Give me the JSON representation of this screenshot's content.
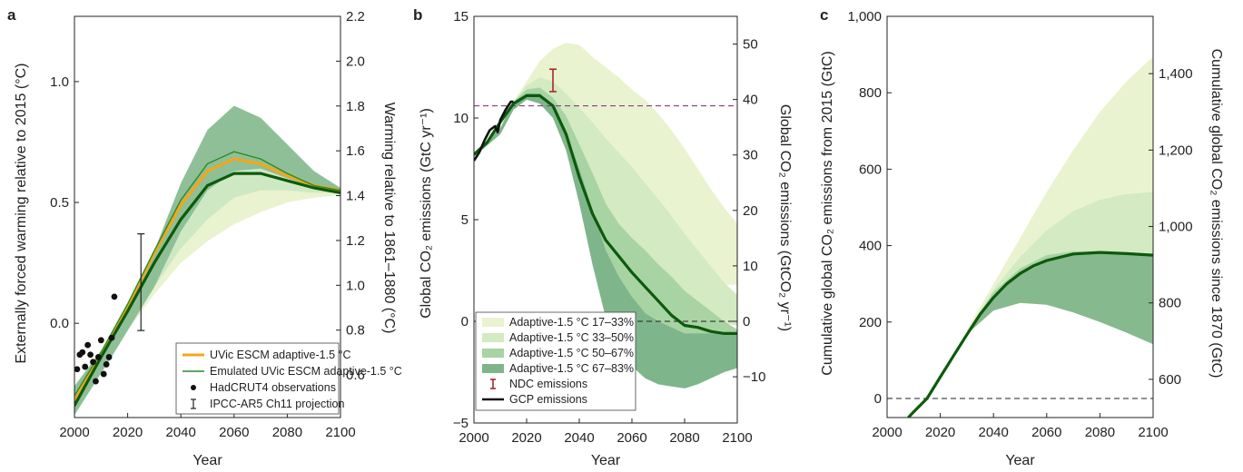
{
  "chart_data": [
    {
      "panel": "a",
      "type": "line",
      "xlabel": "Year",
      "ylabel": "Externally forced warming relative to 2015 (°C)",
      "ylabel_right": "Warming relative to 1861–1880 (°C)",
      "xlim": [
        2000,
        2100
      ],
      "ylim": [
        -0.39,
        1.27
      ],
      "ylim_right": [
        0.41,
        2.2
      ],
      "xticks": [
        2000,
        2020,
        2040,
        2060,
        2080,
        2100
      ],
      "xtick_labels": [
        "2000",
        "2020",
        "2040",
        "2060",
        "2080",
        "2100"
      ],
      "yticks": [
        0,
        0.5,
        1.0
      ],
      "ytick_labels": [
        "0.0",
        "0.5",
        "1.0"
      ],
      "yticks_right": [
        0.6,
        0.8,
        1.0,
        1.2,
        1.4,
        1.6,
        1.8,
        2.0,
        2.2
      ],
      "ytick_labels_right": [
        "0.6",
        "0.8",
        "1.0",
        "1.2",
        "1.4",
        "1.6",
        "1.8",
        "2.0",
        "2.2"
      ],
      "bands": [
        {
          "color": "#e9f3cf",
          "x": [
            2000,
            2015,
            2020,
            2030,
            2040,
            2050,
            2060,
            2070,
            2080,
            2090,
            2100
          ],
          "lower": [
            -0.38,
            -0.12,
            -0.03,
            0.12,
            0.25,
            0.34,
            0.41,
            0.46,
            0.5,
            0.52,
            0.53
          ],
          "upper": [
            -0.26,
            -0.04,
            0.06,
            0.26,
            0.43,
            0.57,
            0.64,
            0.65,
            0.61,
            0.57,
            0.55
          ]
        },
        {
          "color": "#cfe8c4",
          "x": [
            2000,
            2015,
            2020,
            2030,
            2040,
            2050,
            2060,
            2070,
            2080,
            2090,
            2100
          ],
          "lower": [
            -0.38,
            -0.12,
            -0.03,
            0.15,
            0.31,
            0.43,
            0.52,
            0.55,
            0.55,
            0.54,
            0.54
          ],
          "upper": [
            -0.26,
            -0.04,
            0.06,
            0.28,
            0.47,
            0.64,
            0.72,
            0.72,
            0.66,
            0.59,
            0.55
          ]
        },
        {
          "color": "#8fbf96",
          "x": [
            2000,
            2015,
            2020,
            2030,
            2040,
            2050,
            2060,
            2070,
            2080,
            2090,
            2100
          ],
          "lower": [
            -0.38,
            -0.12,
            -0.03,
            0.15,
            0.38,
            0.55,
            0.63,
            0.64,
            0.6,
            0.56,
            0.54
          ],
          "upper": [
            -0.26,
            -0.04,
            0.06,
            0.3,
            0.58,
            0.8,
            0.9,
            0.85,
            0.74,
            0.63,
            0.56
          ]
        }
      ],
      "series": [
        {
          "name": "UVic ESCM adaptive-1.5 °C",
          "color": "#f3a61a",
          "width": 3.2,
          "x": [
            2000,
            2010,
            2020,
            2030,
            2040,
            2050,
            2060,
            2070,
            2080,
            2090,
            2100
          ],
          "values": [
            -0.32,
            -0.13,
            0.07,
            0.29,
            0.49,
            0.63,
            0.68,
            0.66,
            0.61,
            0.57,
            0.55
          ]
        },
        {
          "name": "Emulated UVic ESCM adaptive-1.5 °C",
          "color": "#2b8a2b",
          "width": 1.4,
          "x": [
            2000,
            2010,
            2020,
            2030,
            2040,
            2050,
            2060,
            2070,
            2080,
            2090,
            2100
          ],
          "values": [
            -0.3,
            -0.12,
            0.08,
            0.3,
            0.51,
            0.66,
            0.71,
            0.68,
            0.62,
            0.57,
            0.55
          ]
        },
        {
          "name": "",
          "color": "#0c5a0c",
          "width": 3.2,
          "x": [
            2000,
            2010,
            2020,
            2030,
            2040,
            2050,
            2060,
            2070,
            2080,
            2090,
            2100
          ],
          "values": [
            -0.34,
            -0.14,
            0.05,
            0.25,
            0.43,
            0.57,
            0.62,
            0.62,
            0.59,
            0.56,
            0.54
          ]
        }
      ],
      "points": {
        "name": "HadCRUT4 observations",
        "x": [
          2001,
          2002,
          2003,
          2004,
          2005,
          2006,
          2007,
          2008,
          2009,
          2010,
          2011,
          2012,
          2013,
          2014,
          2015
        ],
        "y": [
          -0.19,
          -0.13,
          -0.12,
          -0.18,
          -0.09,
          -0.13,
          -0.16,
          -0.24,
          -0.14,
          -0.07,
          -0.21,
          -0.17,
          -0.14,
          -0.06,
          0.11
        ]
      },
      "errorbar": {
        "name": "IPCC-AR5 Ch11 projection",
        "x": 2025,
        "low": -0.03,
        "high": 0.37
      },
      "legend": [
        "UVic ESCM adaptive-1.5 °C",
        "Emulated UVic ESCM adaptive-1.5 °C",
        "HadCRUT4 observations",
        "IPCC-AR5 Ch11 projection"
      ],
      "legend_position": "lower-right"
    },
    {
      "panel": "b",
      "type": "line",
      "xlabel": "Year",
      "ylabel": "Global CO₂ emissions (GtC yr⁻¹)",
      "ylabel_right": "Global CO₂ emissions (GtCO₂ yr⁻¹)",
      "xlim": [
        2000,
        2100
      ],
      "ylim": [
        -5,
        15
      ],
      "xticks": [
        2000,
        2020,
        2040,
        2060,
        2080,
        2100
      ],
      "xtick_labels": [
        "2000",
        "2020",
        "2040",
        "2060",
        "2080",
        "2100"
      ],
      "yticks": [
        -5,
        0,
        5,
        10,
        15
      ],
      "ytick_labels": [
        "−5",
        "0",
        "5",
        "10",
        "15"
      ],
      "yticks_right_gtco2": [
        -10,
        0,
        10,
        20,
        30,
        40,
        50
      ],
      "ytick_labels_right": [
        "−10",
        "0",
        "10",
        "20",
        "30",
        "40",
        "50"
      ],
      "hline_dashed_purple": 10.6,
      "hline_dashed_black": 0,
      "bands": [
        {
          "name": "Adaptive-1.5 °C 17–33%",
          "color": "#eaf3cf",
          "x": [
            2000,
            2010,
            2015,
            2020,
            2025,
            2030,
            2035,
            2040,
            2045,
            2050,
            2055,
            2060,
            2065,
            2070,
            2075,
            2080,
            2085,
            2090,
            2095,
            2100
          ],
          "lower": [
            8.1,
            9.2,
            10.4,
            10.9,
            10.8,
            10.6,
            10.2,
            9.5,
            8.0,
            6.6,
            5.4,
            4.0,
            3.4,
            2.8,
            2.5,
            2.2,
            2.0,
            1.8,
            1.8,
            1.8
          ],
          "upper": [
            8.3,
            9.5,
            10.8,
            11.8,
            12.8,
            13.4,
            13.7,
            13.6,
            13.0,
            12.5,
            12.0,
            11.4,
            10.9,
            10.2,
            9.4,
            8.5,
            7.5,
            6.5,
            5.6,
            4.8
          ]
        },
        {
          "name": "Adaptive-1.5 °C 33–50%",
          "color": "#d3eac3",
          "x": [
            2000,
            2010,
            2015,
            2020,
            2025,
            2030,
            2035,
            2040,
            2045,
            2050,
            2055,
            2060,
            2065,
            2070,
            2075,
            2080,
            2085,
            2090,
            2095,
            2100
          ],
          "lower": [
            8.1,
            9.2,
            10.4,
            10.9,
            10.8,
            10.5,
            9.8,
            8.6,
            6.8,
            5.0,
            3.6,
            2.6,
            1.8,
            1.3,
            0.8,
            0.5,
            0.2,
            0.0,
            -0.1,
            -0.2
          ],
          "upper": [
            8.3,
            9.5,
            10.8,
            11.6,
            12.0,
            11.8,
            11.2,
            10.5,
            9.8,
            9.0,
            8.3,
            7.6,
            6.8,
            6.0,
            5.2,
            4.3,
            3.5,
            2.7,
            1.9,
            1.3
          ]
        },
        {
          "name": "Adaptive-1.5 °C 50–67%",
          "color": "#a8d3a3",
          "x": [
            2000,
            2010,
            2015,
            2020,
            2025,
            2030,
            2035,
            2040,
            2045,
            2050,
            2055,
            2060,
            2065,
            2070,
            2075,
            2080,
            2085,
            2090,
            2095,
            2100
          ],
          "lower": [
            8.1,
            9.2,
            10.4,
            10.9,
            10.8,
            10.3,
            9.2,
            7.0,
            4.5,
            2.0,
            0.0,
            -1.2,
            -1.8,
            -2.2,
            -2.4,
            -2.5,
            -2.4,
            -2.2,
            -1.8,
            -1.6
          ],
          "upper": [
            8.3,
            9.5,
            10.8,
            11.4,
            11.5,
            11.0,
            10.1,
            8.7,
            7.3,
            5.8,
            4.8,
            4.1,
            3.5,
            2.8,
            2.2,
            1.5,
            1.0,
            0.5,
            0.0,
            -0.4
          ]
        },
        {
          "name": "Adaptive-1.5 °C 67–83%",
          "color": "#7fb58b",
          "x": [
            2000,
            2010,
            2015,
            2020,
            2025,
            2030,
            2035,
            2040,
            2045,
            2050,
            2055,
            2060,
            2065,
            2070,
            2075,
            2080,
            2085,
            2090,
            2095,
            2100
          ],
          "lower": [
            8.1,
            9.2,
            10.4,
            10.9,
            10.7,
            10.0,
            8.4,
            5.8,
            2.8,
            0.2,
            -1.2,
            -2.2,
            -2.8,
            -3.1,
            -3.2,
            -3.3,
            -3.1,
            -2.8,
            -2.5,
            -2.3
          ],
          "upper": [
            8.3,
            9.5,
            10.8,
            11.2,
            11.2,
            10.6,
            9.3,
            7.5,
            5.5,
            3.5,
            2.2,
            1.2,
            0.4,
            0.0,
            -0.3,
            -0.6,
            -0.6,
            -0.6,
            -0.6,
            -0.6
          ]
        }
      ],
      "series": [
        {
          "name": "",
          "color": "#0c5a0c",
          "width": 3.2,
          "x": [
            2000,
            2005,
            2010,
            2015,
            2020,
            2025,
            2030,
            2035,
            2040,
            2045,
            2050,
            2055,
            2060,
            2065,
            2070,
            2075,
            2080,
            2085,
            2090,
            2095,
            2100
          ],
          "values": [
            8.2,
            8.8,
            9.8,
            10.7,
            11.1,
            11.1,
            10.6,
            9.2,
            7.1,
            5.3,
            4.0,
            3.2,
            2.4,
            1.7,
            1.0,
            0.3,
            -0.2,
            -0.3,
            -0.5,
            -0.6,
            -0.6
          ]
        },
        {
          "name": "GCP emissions",
          "color": "#111111",
          "width": 2.6,
          "x": [
            2000,
            2002,
            2004,
            2006,
            2008,
            2009,
            2010,
            2012,
            2014,
            2015
          ],
          "values": [
            7.9,
            8.3,
            8.9,
            9.4,
            9.6,
            9.3,
            9.9,
            10.4,
            10.8,
            10.8
          ]
        }
      ],
      "errorbar": {
        "name": "NDC emissions",
        "color": "#a52a2a",
        "x": 2030,
        "low": 11.3,
        "high": 12.4
      },
      "legend": [
        "Adaptive-1.5 °C 17–33%",
        "Adaptive-1.5 °C 33–50%",
        "Adaptive-1.5 °C 50–67%",
        "Adaptive-1.5 °C 67–83%",
        "NDC emissions",
        "GCP emissions"
      ],
      "legend_position": "lower-left"
    },
    {
      "panel": "c",
      "type": "area",
      "xlabel": "Year",
      "ylabel": "Cumulative global CO₂ emissions from 2015 (GtC)",
      "ylabel_right": "Cumulative global CO₂ emissions since 1870 (GtC)",
      "xlim": [
        2000,
        2100
      ],
      "ylim": [
        -50,
        1000
      ],
      "xticks": [
        2000,
        2020,
        2040,
        2060,
        2080,
        2100
      ],
      "xtick_labels": [
        "2000",
        "2020",
        "2040",
        "2060",
        "2080",
        "2100"
      ],
      "yticks": [
        0,
        200,
        400,
        600,
        800,
        1000
      ],
      "ytick_labels": [
        "0",
        "200",
        "400",
        "600",
        "800",
        "1,000"
      ],
      "right_axis_offset": 550,
      "yticks_right": [
        600,
        800,
        1000,
        1200,
        1400
      ],
      "ytick_labels_right": [
        "600",
        "800",
        "1,000",
        "1,200",
        "1,400"
      ],
      "hline_dashed_black": 0,
      "bands": [
        {
          "color": "#eaf3cf",
          "x": [
            2030,
            2040,
            2050,
            2060,
            2070,
            2080,
            2090,
            2100
          ],
          "lower": [
            170,
            270,
            320,
            350,
            370,
            380,
            380,
            375
          ],
          "upper": [
            180,
            300,
            420,
            540,
            650,
            750,
            830,
            895
          ]
        },
        {
          "color": "#d3eac3",
          "x": [
            2030,
            2040,
            2050,
            2060,
            2070,
            2080,
            2090,
            2100
          ],
          "lower": [
            170,
            260,
            300,
            300,
            280,
            250,
            210,
            170
          ],
          "upper": [
            175,
            285,
            370,
            440,
            490,
            520,
            535,
            540
          ]
        },
        {
          "color": "#a8d3a3",
          "x": [
            2030,
            2040,
            2050,
            2060,
            2070,
            2080,
            2090,
            2100
          ],
          "lower": [
            170,
            240,
            255,
            250,
            235,
            210,
            180,
            145
          ],
          "upper": [
            172,
            278,
            340,
            375,
            385,
            385,
            378,
            375
          ]
        },
        {
          "color": "#86b98e",
          "x": [
            2030,
            2040,
            2050,
            2060,
            2070,
            2080,
            2090,
            2100
          ],
          "lower": [
            168,
            230,
            250,
            245,
            225,
            200,
            172,
            142
          ],
          "upper": [
            172,
            268,
            325,
            358,
            375,
            382,
            378,
            375
          ]
        }
      ],
      "series": [
        {
          "name": "",
          "color": "#0c5a0c",
          "width": 3.2,
          "x": [
            2008,
            2010,
            2015,
            2020,
            2025,
            2030,
            2035,
            2040,
            2045,
            2050,
            2055,
            2060,
            2070,
            2080,
            2090,
            2100
          ],
          "values": [
            -50,
            -35,
            0,
            56,
            112,
            167,
            220,
            264,
            300,
            327,
            347,
            361,
            378,
            382,
            379,
            375
          ]
        }
      ]
    }
  ]
}
